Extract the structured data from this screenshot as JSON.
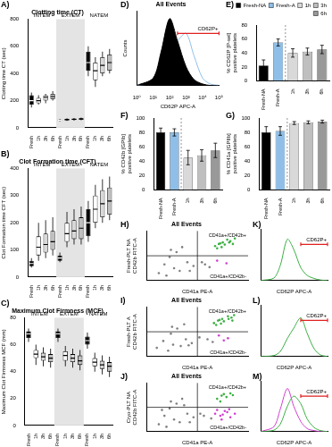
{
  "chart_data": [
    {
      "panel": "A)",
      "type": "box",
      "title": "Clotting time (CT)",
      "y_label": "Clotting time CT (sec)",
      "groups": [
        "INTEM",
        "EXTEM",
        "NATEM"
      ],
      "categories": [
        "Fresh",
        "1h",
        "3h",
        "6h",
        "Fresh",
        "1h",
        "3h",
        "6h",
        "Fresh",
        "1h",
        "3h",
        "6h"
      ],
      "colors": [
        "#000000",
        "#ffffff",
        "#d9d9d9",
        "#bfbfbf",
        "#000000",
        "#ffffff",
        "#d9d9d9",
        "#bfbfbf",
        "#000000",
        "#ffffff",
        "#d9d9d9",
        "#bfbfbf"
      ],
      "box": {
        "low": [
          150,
          170,
          180,
          200,
          45,
          50,
          52,
          55,
          380,
          300,
          380,
          400
        ],
        "q1": [
          170,
          180,
          200,
          210,
          50,
          55,
          58,
          60,
          420,
          350,
          400,
          420
        ],
        "median": [
          200,
          200,
          225,
          230,
          55,
          60,
          62,
          65,
          480,
          420,
          460,
          480
        ],
        "q3": [
          240,
          220,
          240,
          250,
          60,
          65,
          68,
          70,
          560,
          480,
          520,
          540
        ],
        "high": [
          260,
          240,
          250,
          270,
          65,
          70,
          72,
          75,
          600,
          520,
          560,
          580
        ]
      },
      "ylim": [
        0,
        800
      ],
      "yticks": [
        0,
        200,
        400,
        600,
        800
      ],
      "grid": false
    },
    {
      "panel": "B)",
      "type": "box",
      "title": "Clot Formation time (CFT)",
      "y_label": "Clot Formation time CFT (sec)",
      "groups": [
        "INTEM",
        "EXTEM",
        "NATEM"
      ],
      "categories": [
        "Fresh",
        "1h",
        "3h",
        "6h",
        "Fresh",
        "1h",
        "3h",
        "6h",
        "Fresh",
        "1h",
        "3h",
        "6h"
      ],
      "colors": [
        "#000000",
        "#ffffff",
        "#d9d9d9",
        "#bfbfbf",
        "#000000",
        "#ffffff",
        "#d9d9d9",
        "#bfbfbf",
        "#000000",
        "#ffffff",
        "#d9d9d9",
        "#bfbfbf"
      ],
      "box": {
        "low": [
          35,
          60,
          70,
          80,
          55,
          110,
          120,
          120,
          130,
          180,
          200,
          210
        ],
        "q1": [
          40,
          80,
          90,
          100,
          60,
          130,
          140,
          140,
          150,
          200,
          220,
          230
        ],
        "median": [
          50,
          110,
          120,
          130,
          70,
          160,
          170,
          180,
          200,
          250,
          270,
          280
        ],
        "q3": [
          60,
          150,
          160,
          170,
          80,
          200,
          210,
          220,
          250,
          300,
          320,
          330
        ],
        "high": [
          70,
          200,
          210,
          220,
          90,
          240,
          250,
          260,
          280,
          340,
          360,
          370
        ]
      },
      "ylim": [
        0,
        400
      ],
      "yticks": [
        0,
        100,
        200,
        300,
        400
      ],
      "grid": false
    },
    {
      "panel": "C)",
      "type": "box",
      "title": "Maximum Clot Firmness (MCF)",
      "y_label": "Maximum Clot Firmness MCF (mm)",
      "groups": [
        "INTEM",
        "EXTEM",
        "NATEM"
      ],
      "categories": [
        "Fresh",
        "1h",
        "3h",
        "6h",
        "Fresh",
        "1h",
        "3h",
        "6h",
        "Fresh",
        "1h",
        "3h",
        "6h"
      ],
      "colors": [
        "#000000",
        "#ffffff",
        "#d9d9d9",
        "#bfbfbf",
        "#000000",
        "#ffffff",
        "#d9d9d9",
        "#bfbfbf",
        "#000000",
        "#ffffff",
        "#d9d9d9",
        "#bfbfbf"
      ],
      "box": {
        "low": [
          62,
          45,
          44,
          43,
          62,
          44,
          43,
          41,
          57,
          40,
          38,
          36
        ],
        "q1": [
          65,
          50,
          48,
          47,
          65,
          48,
          47,
          45,
          60,
          44,
          42,
          40
        ],
        "median": [
          68,
          53,
          51,
          50,
          68,
          52,
          50,
          48,
          63,
          47,
          45,
          44
        ],
        "q3": [
          70,
          56,
          54,
          53,
          70,
          55,
          53,
          52,
          66,
          50,
          48,
          47
        ],
        "high": [
          72,
          60,
          58,
          57,
          72,
          59,
          57,
          56,
          69,
          54,
          52,
          51
        ]
      },
      "ylim": [
        0,
        80
      ],
      "yticks": [
        0,
        20,
        40,
        60,
        80
      ],
      "grid": false
    },
    {
      "panel": "D)",
      "type": "line",
      "title": "All Events",
      "x_label": "CD62P APC-A",
      "y_label": "Counts",
      "x": [
        1,
        10,
        30,
        100,
        300,
        1000,
        3000,
        10000,
        30000,
        100000
      ],
      "series": [
        {
          "name": "Fresh-NA",
          "color": "#000000",
          "type": "area",
          "values": [
            0,
            10,
            45,
            90,
            60,
            25,
            8,
            2,
            0,
            0
          ]
        },
        {
          "name": "Fresh-A",
          "color": "#8fbfe8",
          "type": "line",
          "values": [
            0,
            4,
            18,
            45,
            60,
            70,
            40,
            10,
            2,
            0
          ]
        }
      ],
      "gate": {
        "label": "CD62P+",
        "range": [
          300,
          100000
        ]
      },
      "log": "x",
      "xlim": [
        1,
        100000
      ],
      "xticks": [
        {
          "value": 1,
          "label": "10⁰"
        },
        {
          "value": 10,
          "label": "10¹"
        },
        {
          "value": 100,
          "label": "10²"
        },
        {
          "value": 1000,
          "label": "10³"
        },
        {
          "value": 10000,
          "label": "10⁴"
        },
        {
          "value": 100000,
          "label": "10⁵"
        }
      ],
      "ylim": [
        0,
        100
      ],
      "tick_labels": "x",
      "grid": false
    },
    {
      "panel": "E)",
      "type": "bar",
      "y_label": [
        "% CD62P [P-sel]",
        "positive platelets"
      ],
      "categories": [
        "Fresh-NA",
        "Fresh-A",
        "1h",
        "3h",
        "6h"
      ],
      "values": [
        22,
        55,
        40,
        42,
        45
      ],
      "errors": [
        8,
        5,
        6,
        5,
        6
      ],
      "colors": [
        "#000000",
        "#8fbfe8",
        "#d9d9d9",
        "#bfbfbf",
        "#999999"
      ],
      "legend": "top",
      "ylim": [
        0,
        80
      ],
      "yticks": [
        0,
        20,
        40,
        60,
        80
      ],
      "grid": false
    },
    {
      "panel": "F)",
      "type": "bar",
      "y_label": [
        "% CD42b [GPIb]",
        "positive platelets"
      ],
      "categories": [
        "Fresh-NA",
        "Fresh-A",
        "1h",
        "3h",
        "6h"
      ],
      "values": [
        80,
        80,
        45,
        48,
        55
      ],
      "errors": [
        6,
        5,
        10,
        8,
        10
      ],
      "colors": [
        "#000000",
        "#8fbfe8",
        "#d9d9d9",
        "#bfbfbf",
        "#999999"
      ],
      "ylim": [
        0,
        100
      ],
      "yticks": [
        0,
        20,
        40,
        60,
        80,
        100
      ],
      "grid": false
    },
    {
      "panel": "G)",
      "type": "bar",
      "y_label": [
        "% CD41a [GPIIb]",
        "positive platelets"
      ],
      "categories": [
        "Fresh-NA",
        "Fresh-A",
        "1h",
        "3h",
        "6h"
      ],
      "values": [
        80,
        82,
        93,
        94,
        95
      ],
      "errors": [
        8,
        6,
        2,
        2,
        2
      ],
      "colors": [
        "#000000",
        "#8fbfe8",
        "#d9d9d9",
        "#bfbfbf",
        "#999999"
      ],
      "ylim": [
        0,
        100
      ],
      "yticks": [
        0,
        20,
        40,
        60,
        80,
        100
      ],
      "grid": false
    },
    {
      "panel": "H)",
      "type": "scatter",
      "title": "All Events",
      "subtitle": "Fresh-PLT NA",
      "x_label": "CD41a PE-A",
      "y_label": "CD42b FITC-A",
      "series": [
        {
          "color": "#808080",
          "x": [
            30,
            60,
            120,
            200,
            400,
            80,
            150,
            700,
            50,
            250,
            2000,
            3000,
            1500,
            90,
            500
          ],
          "values": [
            40,
            25,
            100,
            60,
            300,
            800,
            2000,
            150,
            200,
            5000,
            200,
            120,
            300,
            3000,
            60
          ]
        },
        {
          "name": "CD41a+/CD42b+",
          "color": "#3cb043",
          "x": [
            5000,
            8000,
            12000,
            20000,
            6000,
            15000,
            10000,
            30000,
            7000,
            25000,
            9000,
            18000
          ],
          "values": [
            6000,
            10000,
            8000,
            15000,
            4000,
            20000,
            12000,
            25000,
            9000,
            9000,
            5000,
            12000
          ]
        },
        {
          "name": "CD41a+/CD42b-",
          "color": "#d040d0",
          "x": [
            6000,
            14000
          ],
          "values": [
            400,
            250
          ]
        }
      ],
      "gates": {
        "x": 1000,
        "y": 1000
      },
      "log": true,
      "xlim": [
        10,
        100000
      ],
      "ylim": [
        10,
        100000
      ],
      "tick_labels": false,
      "grid": false
    },
    {
      "panel": "K)",
      "type": "line",
      "x_label": "CD62P APC-A",
      "x": [
        1,
        10,
        30,
        100,
        300,
        1000,
        3000,
        10000,
        30000,
        100000
      ],
      "series": [
        {
          "color": "#3cb043",
          "type": "line",
          "values": [
            0,
            5,
            30,
            80,
            60,
            25,
            10,
            4,
            1,
            0
          ]
        }
      ],
      "gate": {
        "label": "CD62P+",
        "range": [
          1000,
          100000
        ]
      },
      "log": "x",
      "xlim": [
        1,
        100000
      ],
      "ylim": [
        0,
        100
      ],
      "tick_labels": false,
      "grid": false
    },
    {
      "panel": "I)",
      "type": "scatter",
      "title": "All Events",
      "subtitle": "Fresh-PLT A",
      "x_label": "CD41a PE-A",
      "y_label": "CD42b FITC-A",
      "series": [
        {
          "color": "#808080",
          "x": [
            25,
            70,
            110,
            220,
            350,
            90,
            160,
            600,
            45,
            300,
            2500,
            4000,
            1200,
            100,
            450
          ],
          "values": [
            50,
            30,
            90,
            70,
            250,
            700,
            1800,
            120,
            180,
            4000,
            250,
            150,
            350,
            2500,
            80
          ]
        },
        {
          "name": "CD41a+/CD42b+",
          "color": "#3cb043",
          "x": [
            4500,
            7500,
            11000,
            22000,
            5500,
            16000,
            9500,
            28000,
            6500,
            24000,
            8500,
            17000
          ],
          "values": [
            5000,
            9000,
            7000,
            14000,
            3500,
            18000,
            11000,
            22000,
            8000,
            8000,
            4500,
            11000
          ]
        },
        {
          "name": "CD41a+/CD42b-",
          "color": "#d040d0",
          "x": [
            7000,
            16000,
            11000
          ],
          "values": [
            500,
            300,
            200
          ]
        }
      ],
      "gates": {
        "x": 1000,
        "y": 1000
      },
      "log": true,
      "xlim": [
        10,
        100000
      ],
      "ylim": [
        10,
        100000
      ],
      "tick_labels": false,
      "grid": false
    },
    {
      "panel": "L)",
      "type": "line",
      "x_label": "CD62P APC-A",
      "x": [
        1,
        10,
        30,
        100,
        300,
        1000,
        3000,
        10000,
        30000,
        100000
      ],
      "series": [
        {
          "color": "#3cb043",
          "type": "line",
          "values": [
            0,
            2,
            10,
            35,
            55,
            75,
            45,
            15,
            3,
            0
          ]
        }
      ],
      "gate": {
        "label": "CD62P+",
        "range": [
          1000,
          100000
        ]
      },
      "log": "x",
      "xlim": [
        1,
        100000
      ],
      "ylim": [
        0,
        100
      ],
      "tick_labels": false,
      "grid": false
    },
    {
      "panel": "J)",
      "type": "scatter",
      "title": "All Events",
      "subtitle": "Cryo-PLT NA",
      "x_label": "CD41a PE-A",
      "y_label": "CD42b FITC-A",
      "series": [
        {
          "color": "#808080",
          "x": [
            30,
            60,
            120,
            200,
            400,
            80,
            150,
            700,
            50,
            250,
            1800,
            3500,
            1300,
            90,
            500,
            40,
            300
          ],
          "values": [
            40,
            25,
            100,
            60,
            300,
            800,
            2000,
            150,
            200,
            5000,
            200,
            120,
            300,
            3000,
            60,
            600,
            1500
          ]
        },
        {
          "name": "CD41a+/CD42b+",
          "color": "#3cb043",
          "x": [
            6000,
            9000,
            14000,
            20000,
            11000,
            25000,
            8000
          ],
          "values": [
            5000,
            9000,
            7000,
            14000,
            12000,
            10000,
            3000
          ]
        },
        {
          "name": "CD41a+/CD42b-",
          "color": "#d040d0",
          "x": [
            5000,
            8000,
            12000,
            20000,
            6000,
            15000,
            10000,
            9000,
            30000,
            18000
          ],
          "values": [
            300,
            200,
            500,
            150,
            600,
            400,
            250,
            100,
            300,
            700
          ]
        }
      ],
      "gates": {
        "x": 1000,
        "y": 1000
      },
      "log": true,
      "xlim": [
        10,
        100000
      ],
      "ylim": [
        10,
        100000
      ],
      "tick_labels": false,
      "grid": false
    },
    {
      "panel": "M)",
      "type": "line",
      "x_label": "CD62P APC-A",
      "x": [
        1,
        10,
        30,
        100,
        300,
        1000,
        3000,
        10000,
        30000,
        100000
      ],
      "series": [
        {
          "color": "#3cb043",
          "type": "line",
          "values": [
            0,
            3,
            15,
            50,
            70,
            55,
            25,
            8,
            2,
            0
          ]
        },
        {
          "color": "#d040d0",
          "type": "line",
          "values": [
            0,
            10,
            45,
            85,
            50,
            20,
            6,
            2,
            0,
            0
          ]
        }
      ],
      "gate": {
        "label": "CD62P+",
        "range": [
          1000,
          100000
        ]
      },
      "log": "x",
      "xlim": [
        1,
        100000
      ],
      "ylim": [
        0,
        100
      ],
      "tick_labels": false,
      "grid": false
    }
  ]
}
